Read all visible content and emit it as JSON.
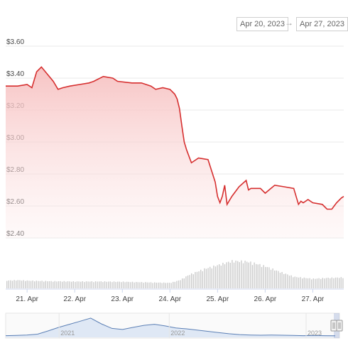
{
  "range_selector": {
    "from": "Apr 20, 2023",
    "arrow": "→",
    "to": "Apr 27, 2023"
  },
  "colors": {
    "price_line": "#d62f2f",
    "price_fill_top": "#f6bdbd",
    "volume_bar": "#cccccc",
    "navigator_line": "#5b7fb5",
    "navigator_fill": "#dfe8f5"
  },
  "chart_data": {
    "type": "area",
    "y_axis": {
      "ticks": [
        "$3.60",
        "$3.40",
        "$3.20",
        "$3.00",
        "$2.80",
        "$2.60",
        "$2.40"
      ],
      "tick_values": [
        3.6,
        3.4,
        3.2,
        3.0,
        2.8,
        2.6,
        2.4
      ],
      "ylim": [
        2.4,
        3.6
      ]
    },
    "x_axis": {
      "ticks": [
        "21. Apr",
        "22. Apr",
        "23. Apr",
        "24. Apr",
        "25. Apr",
        "26. Apr",
        "27. Apr"
      ],
      "tick_values": [
        21,
        22,
        23,
        24,
        25,
        26,
        27
      ],
      "xlim": [
        20.55,
        27.65
      ]
    },
    "grid": true,
    "legend": "none",
    "series": [
      {
        "x": [
          20.55,
          20.8,
          21.0,
          21.1,
          21.2,
          21.3,
          21.55,
          21.65,
          21.75,
          21.9,
          22.1,
          22.3,
          22.4,
          22.6,
          22.8,
          22.9,
          23.2,
          23.4,
          23.6,
          23.7,
          23.85,
          24.0,
          24.1,
          24.15,
          24.2,
          24.25,
          24.3,
          24.35,
          24.45,
          24.5,
          24.6,
          24.8,
          24.95,
          25.0,
          25.05,
          25.1,
          25.15,
          25.2,
          25.3,
          25.4,
          25.45,
          25.6,
          25.65,
          25.7,
          25.9,
          26.0,
          26.2,
          26.4,
          26.6,
          26.7,
          26.75,
          26.8,
          26.9,
          27.0,
          27.2,
          27.3,
          27.4,
          27.5,
          27.6,
          27.65
        ],
        "values": [
          3.35,
          3.35,
          3.36,
          3.34,
          3.44,
          3.47,
          3.38,
          3.33,
          3.34,
          3.35,
          3.36,
          3.37,
          3.38,
          3.41,
          3.4,
          3.38,
          3.37,
          3.37,
          3.35,
          3.33,
          3.34,
          3.33,
          3.3,
          3.27,
          3.21,
          3.1,
          3.0,
          2.95,
          2.87,
          2.88,
          2.9,
          2.89,
          2.75,
          2.66,
          2.62,
          2.66,
          2.73,
          2.61,
          2.66,
          2.7,
          2.72,
          2.76,
          2.7,
          2.71,
          2.71,
          2.68,
          2.73,
          2.72,
          2.71,
          2.61,
          2.63,
          2.62,
          2.64,
          2.62,
          2.61,
          2.58,
          2.58,
          2.62,
          2.65,
          2.66
        ]
      }
    ],
    "volume": {
      "x": [
        20.55,
        20.8,
        21.0,
        21.5,
        22.0,
        22.5,
        23.0,
        23.5,
        24.0,
        24.2,
        24.4,
        24.7,
        25.0,
        25.3,
        25.6,
        25.8,
        26.0,
        26.3,
        26.6,
        27.0,
        27.3,
        27.65
      ],
      "values": [
        0.28,
        0.3,
        0.28,
        0.26,
        0.25,
        0.25,
        0.24,
        0.22,
        0.2,
        0.3,
        0.5,
        0.7,
        0.85,
        1.0,
        0.98,
        0.9,
        0.8,
        0.6,
        0.42,
        0.35,
        0.38,
        0.4
      ]
    },
    "navigator": {
      "ticks": [
        "2021",
        "2022",
        "2023"
      ],
      "values": [
        0.05,
        0.06,
        0.08,
        0.12,
        0.28,
        0.45,
        0.6,
        0.75,
        0.9,
        0.62,
        0.4,
        0.35,
        0.45,
        0.55,
        0.6,
        0.52,
        0.42,
        0.38,
        0.32,
        0.26,
        0.2,
        0.14,
        0.1,
        0.08,
        0.07,
        0.08,
        0.07,
        0.06,
        0.05,
        0.06,
        0.05,
        0.04
      ]
    }
  }
}
